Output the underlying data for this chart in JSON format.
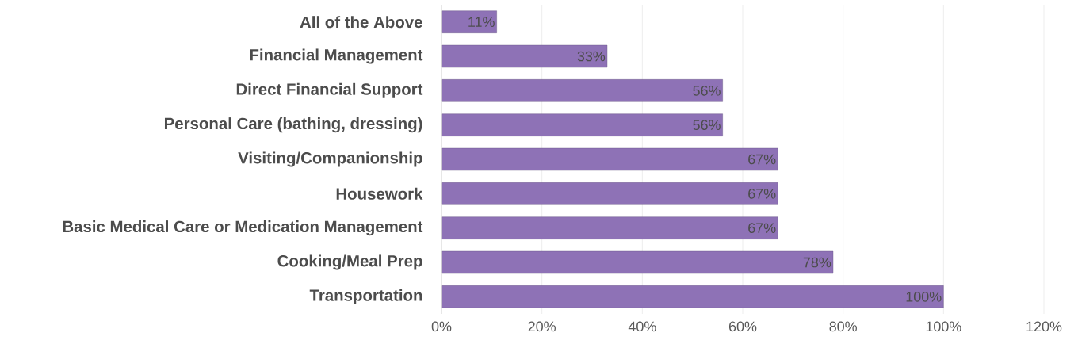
{
  "chart_data": {
    "type": "bar",
    "orientation": "horizontal",
    "categories": [
      "All of the Above",
      "Financial Management",
      "Direct Financial Support",
      "Personal Care (bathing, dressing)",
      "Visiting/Companionship",
      "Housework",
      "Basic Medical Care or Medication Management",
      "Cooking/Meal Prep",
      "Transportation"
    ],
    "values": [
      11,
      33,
      56,
      56,
      67,
      67,
      67,
      78,
      100
    ],
    "value_labels": [
      "11%",
      "33%",
      "56%",
      "56%",
      "67%",
      "67%",
      "67%",
      "78%",
      "100%"
    ],
    "color": "#8e72b6",
    "xlim": [
      0,
      120
    ],
    "xticks": [
      {
        "value": 0,
        "label": "0%"
      },
      {
        "value": 20,
        "label": "20%"
      },
      {
        "value": 40,
        "label": "40%"
      },
      {
        "value": 60,
        "label": "60%"
      },
      {
        "value": 80,
        "label": "80%"
      },
      {
        "value": 100,
        "label": "100%"
      },
      {
        "value": 120,
        "label": "120%"
      }
    ],
    "grid": "x"
  }
}
